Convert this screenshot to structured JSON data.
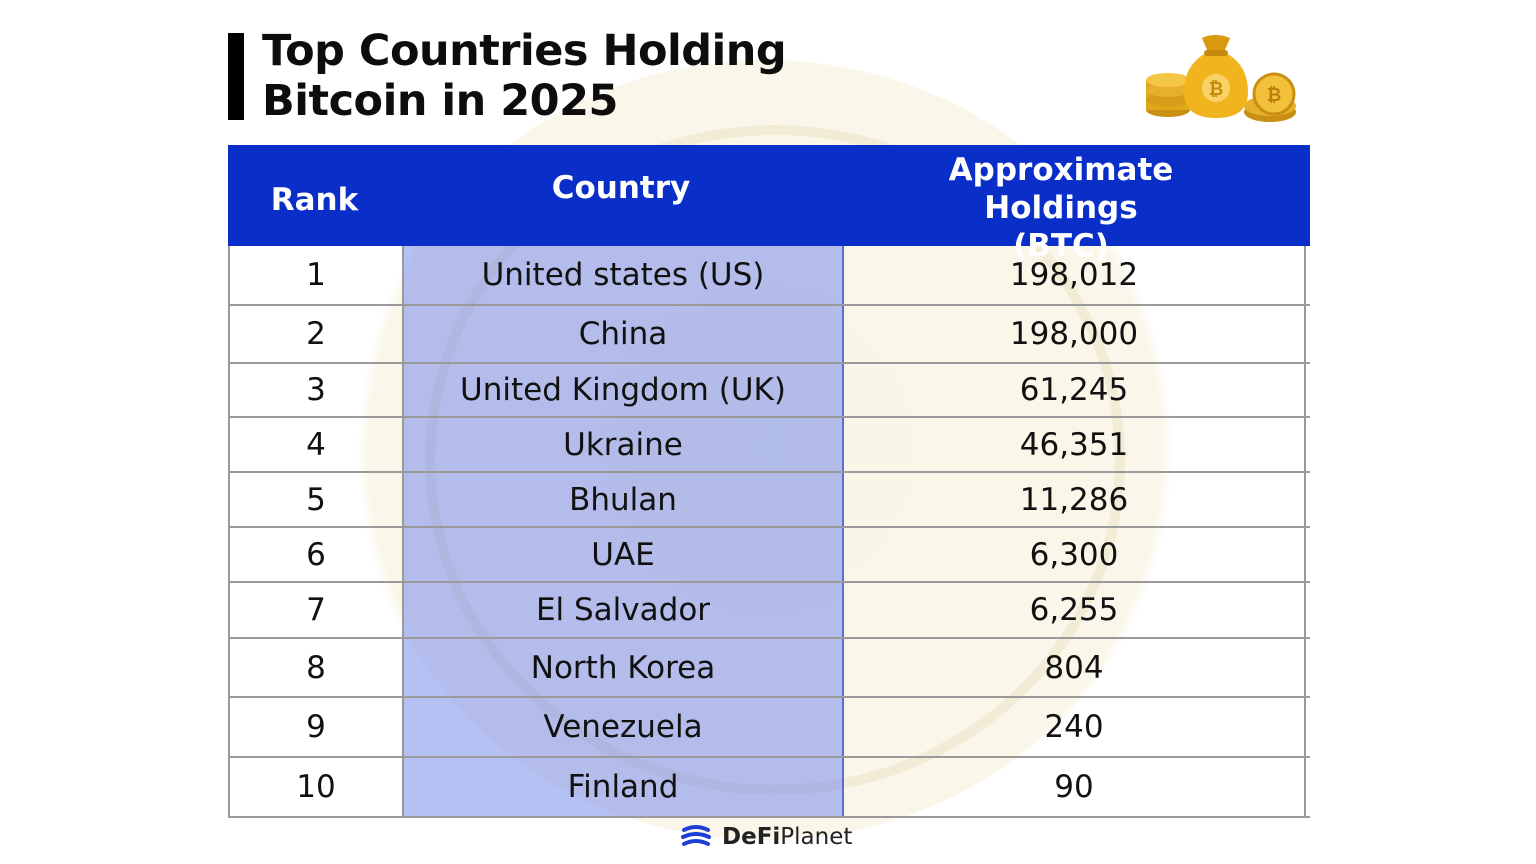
{
  "title": "Top Countries Holding Bitcoin in 2025",
  "brand": {
    "name_bold": "DeFi",
    "name_rest": " Planet",
    "icon": "defi-planet-logo-icon"
  },
  "decor": {
    "coins_icon": "bitcoin-money-bag-icon"
  },
  "colors": {
    "header_bg": "#0a2ec8",
    "country_col": "#8a9ae8",
    "title_bar": "#000000"
  },
  "chart_data": {
    "type": "table",
    "title": "Top Countries Holding Bitcoin in 2025",
    "columns": [
      "Rank",
      "Country",
      "Approximate Holdings (BTC)"
    ],
    "rows": [
      {
        "rank": "1",
        "country": "United states (US)",
        "holdings": "198,012"
      },
      {
        "rank": "2",
        "country": "China",
        "holdings": "198,000"
      },
      {
        "rank": "3",
        "country": "United Kingdom (UK)",
        "holdings": "61,245"
      },
      {
        "rank": "4",
        "country": "Ukraine",
        "holdings": "46,351"
      },
      {
        "rank": "5",
        "country": "Bhulan",
        "holdings": "11,286"
      },
      {
        "rank": "6",
        "country": "UAE",
        "holdings": "6,300"
      },
      {
        "rank": "7",
        "country": "El Salvador",
        "holdings": "6,255"
      },
      {
        "rank": "8",
        "country": "North Korea",
        "holdings": "804"
      },
      {
        "rank": "9",
        "country": "Venezuela",
        "holdings": "240"
      },
      {
        "rank": "10",
        "country": "Finland",
        "holdings": "90"
      }
    ]
  }
}
